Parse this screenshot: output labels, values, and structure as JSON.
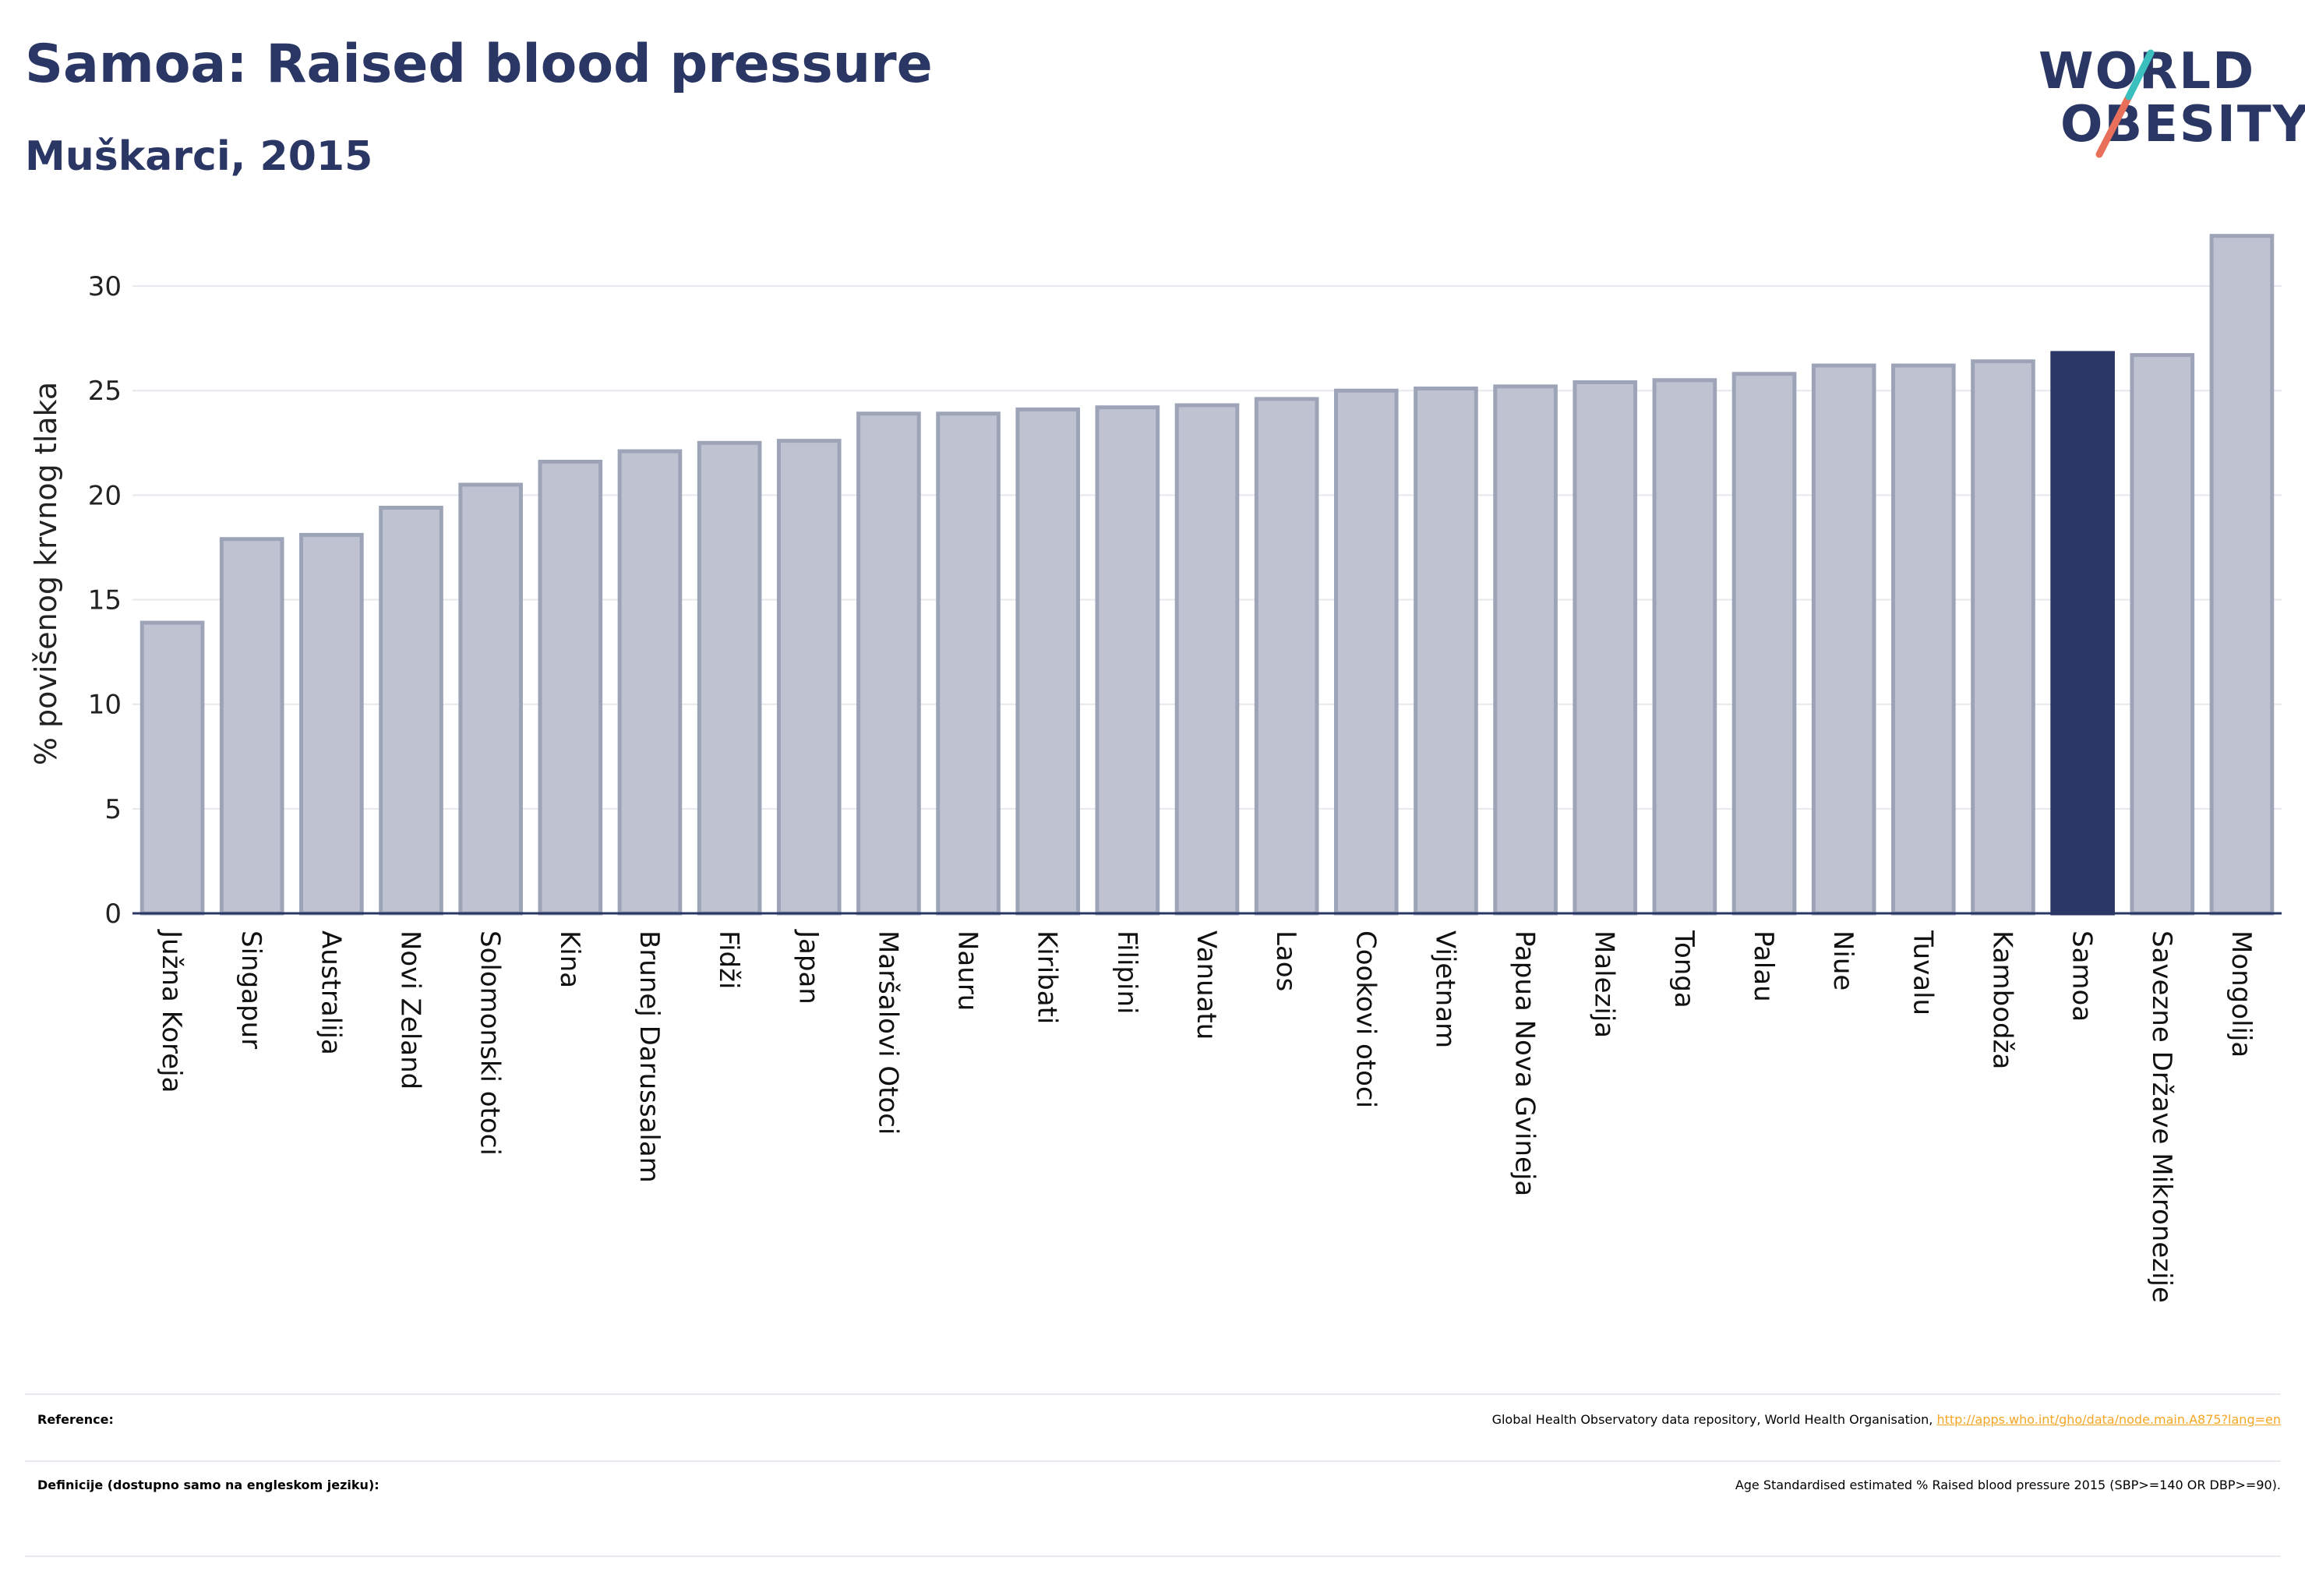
{
  "title": "Samoa: Raised blood pressure",
  "subtitle": "Muškarci, 2015",
  "logo": {
    "line1": "WORLD",
    "line2": "OBESITY",
    "accent": "#e8705a",
    "accent2": "#3cbfbf"
  },
  "colors": {
    "bar": "#bfc3d1",
    "bar_stroke": "#9ea4b8",
    "highlight": "#2a3663",
    "grid": "#e6e8ee",
    "axis": "#2a3663"
  },
  "chart_data": {
    "type": "bar",
    "ylabel": "% povišenog krvnog tlaka",
    "ylim": [
      0,
      32.5
    ],
    "yticks": [
      0,
      5,
      10,
      15,
      20,
      25,
      30
    ],
    "grid": true,
    "highlight": "Samoa",
    "categories": [
      "Južna Koreja",
      "Singapur",
      "Australija",
      "Novi Zeland",
      "Solomonski otoci",
      "Kina",
      "Brunej Darussalam",
      "Fidži",
      "Japan",
      "Maršalovi Otoci",
      "Nauru",
      "Kiribati",
      "Filipini",
      "Vanuatu",
      "Laos",
      "Cookovi otoci",
      "Vijetnam",
      "Papua Nova Gvineja",
      "Malezija",
      "Tonga",
      "Palau",
      "Niue",
      "Tuvalu",
      "Kambodža",
      "Samoa",
      "Savezne Države Mikronezije",
      "Mongolija"
    ],
    "values": [
      13.9,
      17.9,
      18.1,
      19.4,
      20.5,
      21.6,
      22.1,
      22.5,
      22.6,
      23.9,
      23.9,
      24.1,
      24.2,
      24.3,
      24.6,
      25.0,
      25.1,
      25.2,
      25.4,
      25.5,
      25.8,
      26.2,
      26.2,
      26.4,
      26.8,
      26.7,
      32.4
    ]
  },
  "footer": {
    "reference_label": "Reference:",
    "reference_text": "Global Health Observatory data repository, World Health Organisation, ",
    "reference_link": "http://apps.who.int/gho/data/node.main.A875?lang=en",
    "definition_label": "Definicije (dostupno samo na engleskom jeziku):",
    "definition_text": "Age Standardised estimated % Raised blood pressure 2015 (SBP>=140 OR DBP>=90)."
  }
}
